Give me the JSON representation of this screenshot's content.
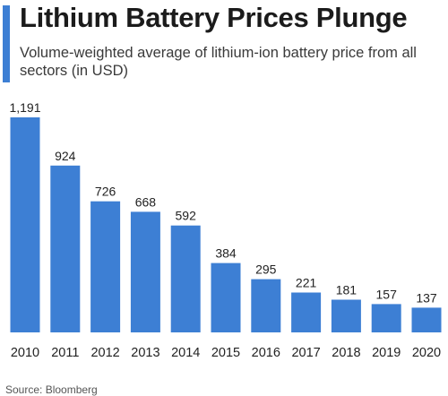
{
  "header": {
    "title": "Lithium Battery Prices Plunge",
    "subtitle": "Volume-weighted average of lithium-ion battery price from all sectors (in USD)"
  },
  "footer": {
    "source": "Source: Bloomberg"
  },
  "colors": {
    "accent": "#3d7fd4",
    "bar": "#3d7fd4",
    "text": "#222222"
  },
  "chart_data": {
    "type": "bar",
    "title": "Lithium Battery Prices Plunge",
    "subtitle": "Volume-weighted average of lithium-ion battery price from all sectors (in USD)",
    "categories": [
      "2010",
      "2011",
      "2012",
      "2013",
      "2014",
      "2015",
      "2016",
      "2017",
      "2018",
      "2019",
      "2020"
    ],
    "values": [
      1191,
      924,
      726,
      668,
      592,
      384,
      295,
      221,
      181,
      157,
      137
    ],
    "labels": [
      "1,191",
      "924",
      "726",
      "668",
      "592",
      "384",
      "295",
      "221",
      "181",
      "157",
      "137"
    ],
    "xlabel": "",
    "ylabel": "",
    "ylim": [
      0,
      1191
    ],
    "grid": false,
    "legend": "none"
  }
}
